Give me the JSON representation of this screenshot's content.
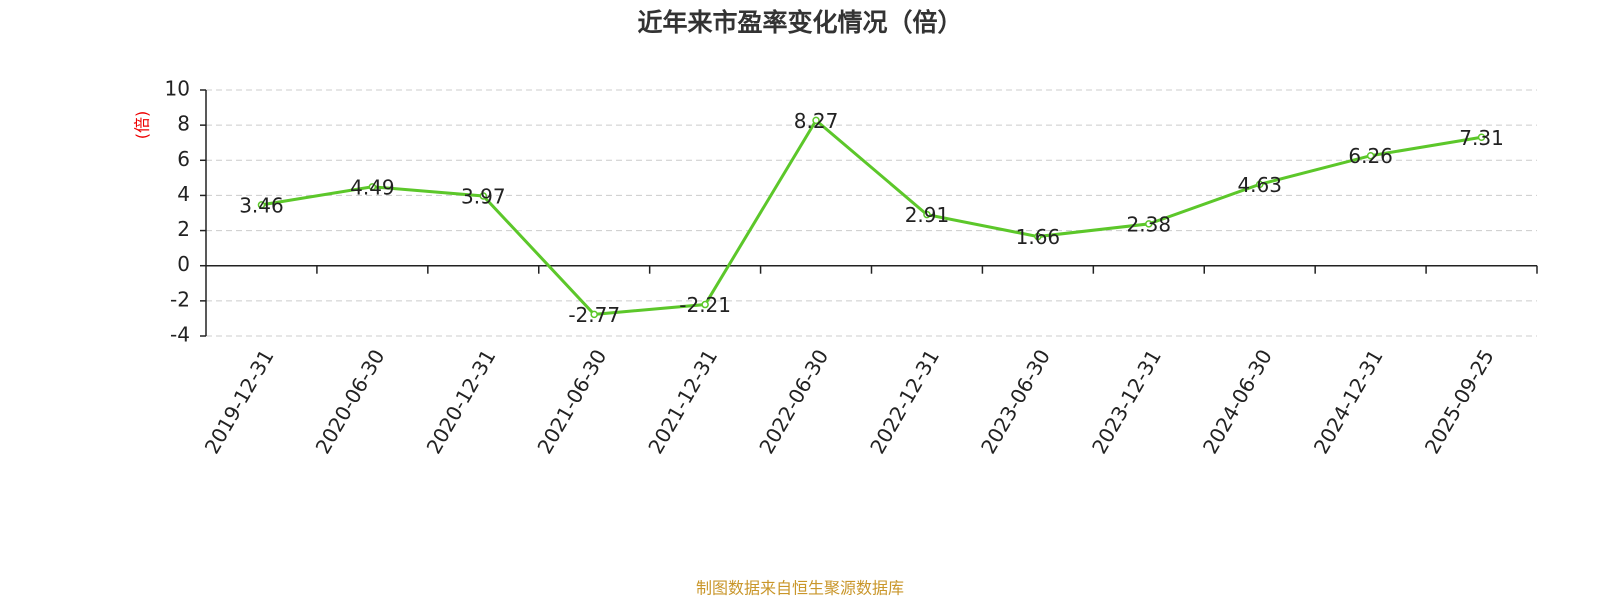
{
  "chart_data": {
    "type": "line",
    "title": "近年来市盈率变化情况（倍）",
    "y_label": "(倍)",
    "source": "制图数据来自恒生聚源数据库",
    "categories": [
      "2019-12-31",
      "2020-06-30",
      "2020-12-31",
      "2021-06-30",
      "2021-12-31",
      "2022-06-30",
      "2022-12-31",
      "2023-06-30",
      "2023-12-31",
      "2024-06-30",
      "2024-12-31",
      "2025-09-25"
    ],
    "values": [
      3.46,
      4.49,
      3.97,
      -2.77,
      -2.21,
      8.27,
      2.91,
      1.66,
      2.38,
      4.63,
      6.26,
      7.31
    ],
    "color": "#5cc72a",
    "ylim": [
      -4,
      10
    ],
    "yticks": [
      -4,
      -2,
      0,
      2,
      4,
      6,
      8,
      10
    ],
    "grid": true
  }
}
